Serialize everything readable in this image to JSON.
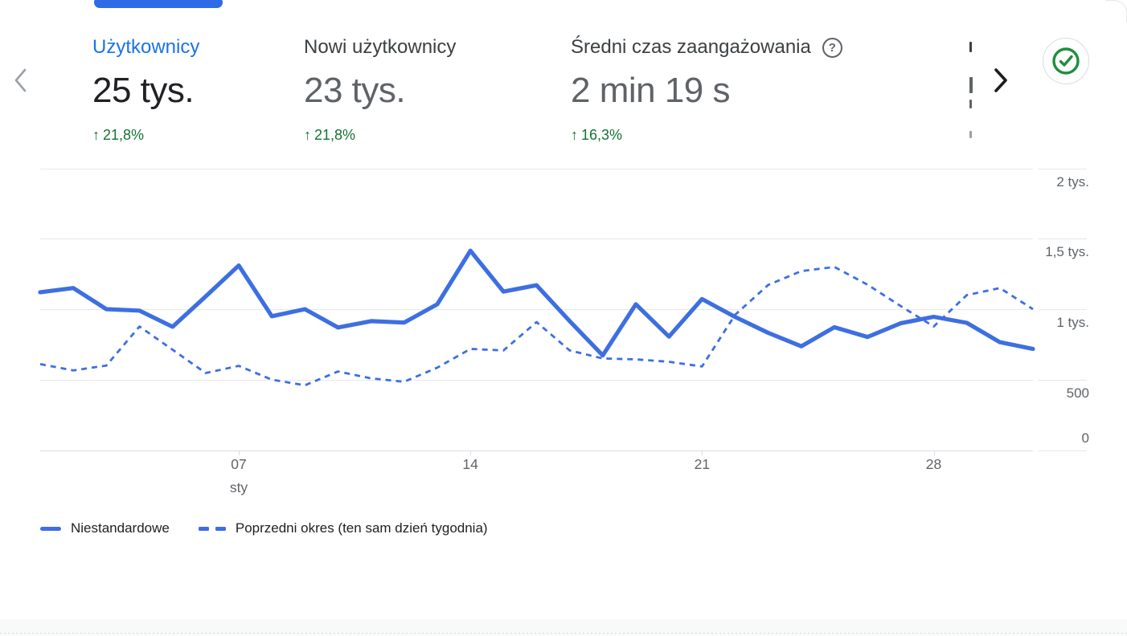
{
  "colors": {
    "accent_blue": "#3d6fe2",
    "selected_label_blue": "#1a73e8",
    "positive_green": "#137333",
    "check_icon_green": "#1e8e3e",
    "text_dark": "#202124",
    "text_gray": "#5f6368",
    "gridline": "#e8e8e8",
    "axis_line": "#dadce0"
  },
  "scorecards": [
    {
      "label": "Użytkownicy",
      "value": "25 tys.",
      "delta_arrow": "↑",
      "delta": "21,8%",
      "selected": true
    },
    {
      "label": "Nowi użytkownicy",
      "value": "23 tys.",
      "delta_arrow": "↑",
      "delta": "21,8%",
      "selected": false
    },
    {
      "label": "Średni czas zaangażowania",
      "value": "2 min 19 s",
      "delta_arrow": "↑",
      "delta": "16,3%",
      "selected": false,
      "help_glyph": "?"
    }
  ],
  "legend": {
    "items": [
      {
        "label": "Niestandardowe",
        "swatch": "solid"
      },
      {
        "label": "Poprzedni okres (ten sam dzień tygodnia)",
        "swatch": "dashed"
      }
    ]
  },
  "chart_data": {
    "type": "line",
    "x": [
      1,
      2,
      3,
      4,
      5,
      6,
      7,
      8,
      9,
      10,
      11,
      12,
      13,
      14,
      15,
      16,
      17,
      18,
      19,
      20,
      21,
      22,
      23,
      24,
      25,
      26,
      27,
      28,
      29,
      30,
      31
    ],
    "x_month_label": "sty",
    "x_axis_ticks": [
      {
        "day": 7,
        "label": "07",
        "sublabel": "sty"
      },
      {
        "day": 14,
        "label": "14"
      },
      {
        "day": 21,
        "label": "21"
      },
      {
        "day": 28,
        "label": "28"
      }
    ],
    "y_ticks": [
      {
        "value": 0,
        "label": "0"
      },
      {
        "value": 500,
        "label": "500"
      },
      {
        "value": 1000,
        "label": "1 tys."
      },
      {
        "value": 1500,
        "label": "1,5 tys."
      },
      {
        "value": 2000,
        "label": "2 tys."
      }
    ],
    "ylim": [
      0,
      2000
    ],
    "grid": "horizontal",
    "legend_position": "bottom-left",
    "series": [
      {
        "name": "Niestandardowe",
        "style": "solid",
        "values": [
          1120,
          1150,
          1000,
          990,
          875,
          1090,
          1310,
          950,
          1000,
          870,
          915,
          905,
          1035,
          1415,
          1125,
          1170,
          915,
          672,
          1035,
          805,
          1072,
          945,
          832,
          737,
          872,
          803,
          900,
          946,
          903,
          766,
          718
        ]
      },
      {
        "name": "Poprzedni okres (ten sam dzień tygodnia)",
        "style": "dashed",
        "values": [
          610,
          565,
          600,
          877,
          712,
          547,
          598,
          500,
          460,
          558,
          509,
          485,
          585,
          718,
          707,
          908,
          707,
          650,
          644,
          627,
          593,
          960,
          1172,
          1270,
          1300,
          1174,
          1023,
          877,
          1100,
          1150,
          1000
        ]
      }
    ]
  }
}
